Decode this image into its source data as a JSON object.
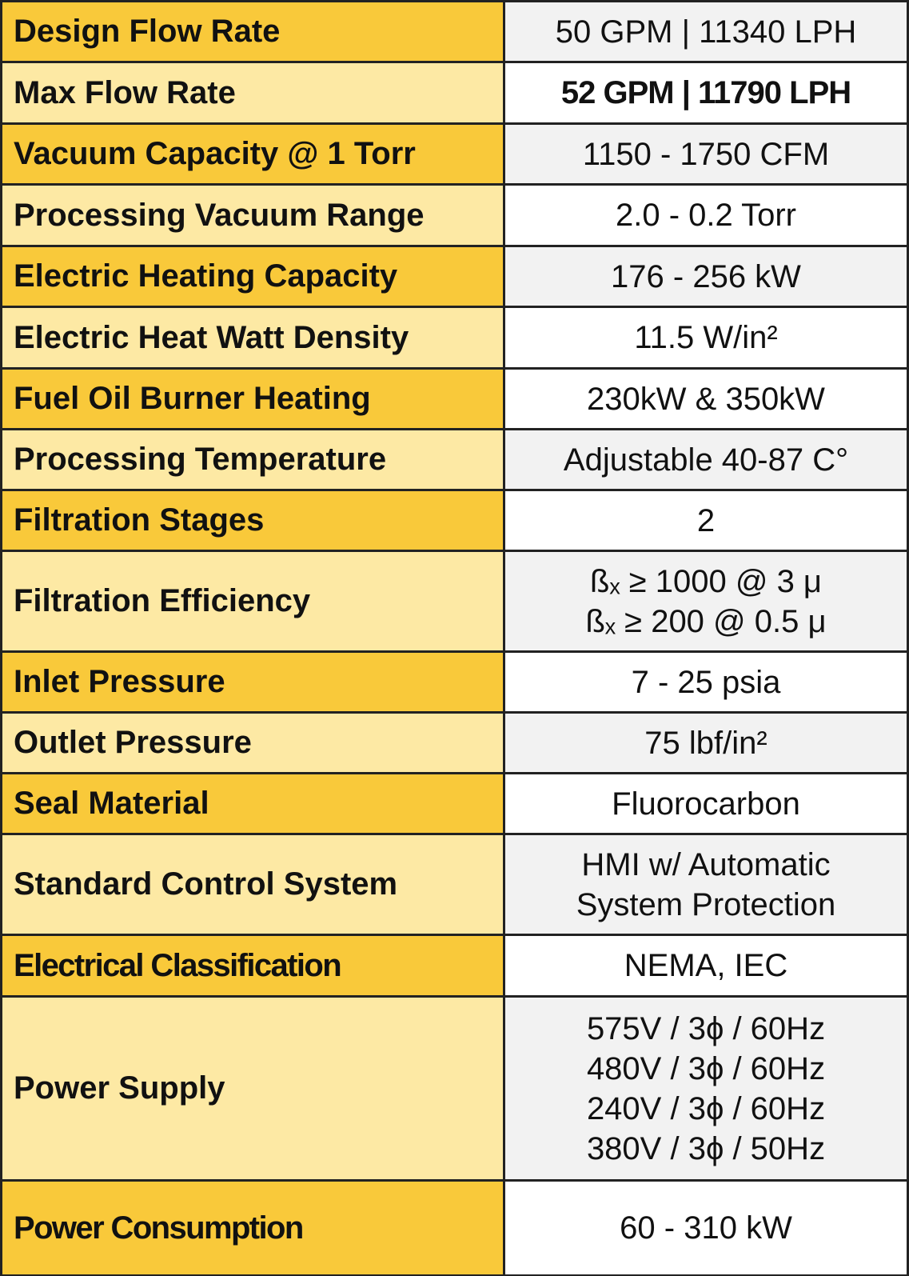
{
  "table": {
    "rows": [
      {
        "label": "Design Flow Rate",
        "value": [
          "50 GPM  |  11340 LPH"
        ]
      },
      {
        "label": "Max Flow Rate",
        "value": [
          "52 GPM  |  11790 LPH"
        ]
      },
      {
        "label": "Vacuum Capacity @ 1 Torr",
        "value": [
          "1150 - 1750 CFM"
        ]
      },
      {
        "label": "Processing Vacuum  Range",
        "value": [
          "2.0 - 0.2 Torr"
        ]
      },
      {
        "label": "Electric Heating Capacity",
        "value": [
          "176 - 256 kW"
        ]
      },
      {
        "label": "Electric Heat Watt Density",
        "value": [
          "11.5 W/in²"
        ]
      },
      {
        "label": "Fuel Oil Burner Heating",
        "value": [
          "230kW & 350kW"
        ]
      },
      {
        "label": "Processing Temperature",
        "value": [
          "Adjustable  40-87 C°"
        ]
      },
      {
        "label": "Filtration Stages",
        "value": [
          "2"
        ]
      },
      {
        "label": "Filtration Efficiency",
        "value": [
          "ßₓ ≥ 1000 @ 3 μ",
          "ßₓ ≥ 200 @ 0.5 μ"
        ]
      },
      {
        "label": "Inlet Pressure",
        "value": [
          "7  -  25 psia"
        ]
      },
      {
        "label": "Outlet Pressure",
        "value": [
          "75 lbf/in²"
        ]
      },
      {
        "label": "Seal Material",
        "value": [
          "Fluorocarbon"
        ]
      },
      {
        "label": "Standard Control System",
        "value": [
          "HMI w/ Automatic",
          "System Protection"
        ]
      },
      {
        "label": "Electrical Classification",
        "value": [
          "NEMA, IEC"
        ]
      },
      {
        "label": "Power Supply",
        "value": [
          "575V / 3ϕ / 60Hz",
          "480V / 3ϕ / 60Hz",
          "240V / 3ϕ / 60Hz",
          "380V / 3ϕ / 50Hz"
        ]
      },
      {
        "label": "Power Consumption",
        "value": [
          "60 - 310 kW"
        ]
      }
    ]
  }
}
